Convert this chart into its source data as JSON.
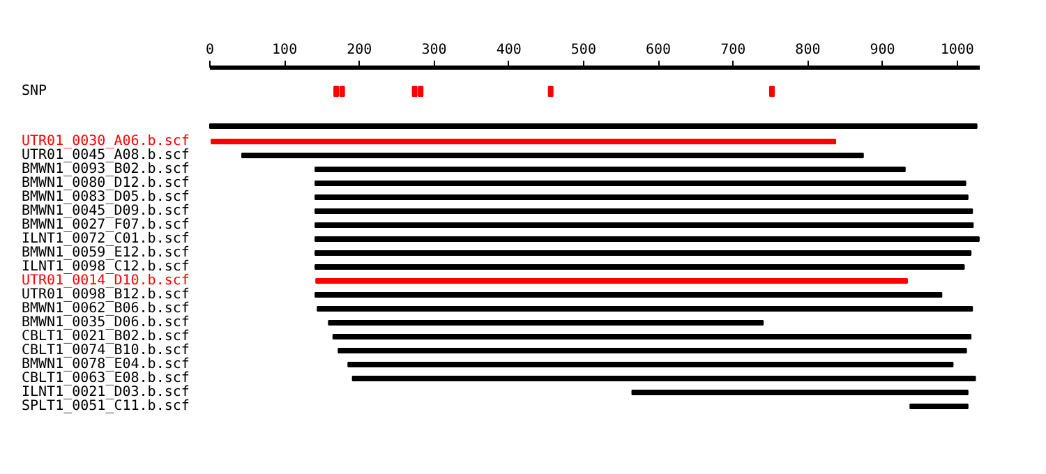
{
  "chart_data": {
    "type": "bar",
    "orientation": "horizontal",
    "categories": [
      "SNP",
      null,
      "UTR01_0030_A06.b.scf",
      "UTR01_0045_A08.b.scf",
      "BMWN1_0093_B02.b.scf",
      "BMWN1_0080_D12.b.scf",
      "BMWN1_0083_D05.b.scf",
      "BMWN1_0045_D09.b.scf",
      "BMWN1_0027_F07.b.scf",
      "ILNT1_0072_C01.b.scf",
      "BMWN1_0059_E12.b.scf",
      "ILNT1_0098_C12.b.scf",
      "UTR01_0014_D10.b.scf",
      "UTR01_0098_B12.b.scf",
      "BMWN1_0062_B06.b.scf",
      "BMWN1_0035_D06.b.scf",
      "CBLT1_0021_B02.b.scf",
      "CBLT1_0074_B10.b.scf",
      "BMWN1_0078_E04.b.scf",
      "CBLT1_0063_E08.b.scf",
      "ILNT1_0021_D03.b.scf",
      "SPLT1_0051_C11.b.scf"
    ],
    "series": [
      {
        "base": [
          null,
          0,
          2,
          43,
          141,
          141,
          141,
          141,
          141,
          141,
          141,
          141,
          142,
          141,
          144,
          159,
          165,
          172,
          185,
          191,
          565,
          937
        ],
        "values": [
          null,
          1026,
          835,
          831,
          789,
          870,
          873,
          879,
          880,
          888,
          877,
          868,
          791,
          838,
          876,
          581,
          853,
          840,
          809,
          833,
          449,
          77
        ],
        "colors": [
          "#000000",
          "#000000",
          "#ff0000",
          "#000000",
          "#000000",
          "#000000",
          "#000000",
          "#000000",
          "#000000",
          "#000000",
          "#000000",
          "#000000",
          "#ff0000",
          "#000000",
          "#000000",
          "#000000",
          "#000000",
          "#000000",
          "#000000",
          "#000000",
          "#000000",
          "#000000"
        ]
      },
      {
        "type": "scatter",
        "x": [
          "SNP",
          "SNP",
          "SNP",
          "SNP",
          "SNP",
          "SNP"
        ],
        "values": [
          169,
          177,
          274,
          282,
          456,
          752
        ],
        "color": "#ff0000"
      }
    ],
    "xlim": [
      0,
      1030
    ],
    "xticks": [
      0,
      100,
      200,
      300,
      400,
      500,
      600,
      700,
      800,
      900,
      1000
    ],
    "grid": false
  }
}
